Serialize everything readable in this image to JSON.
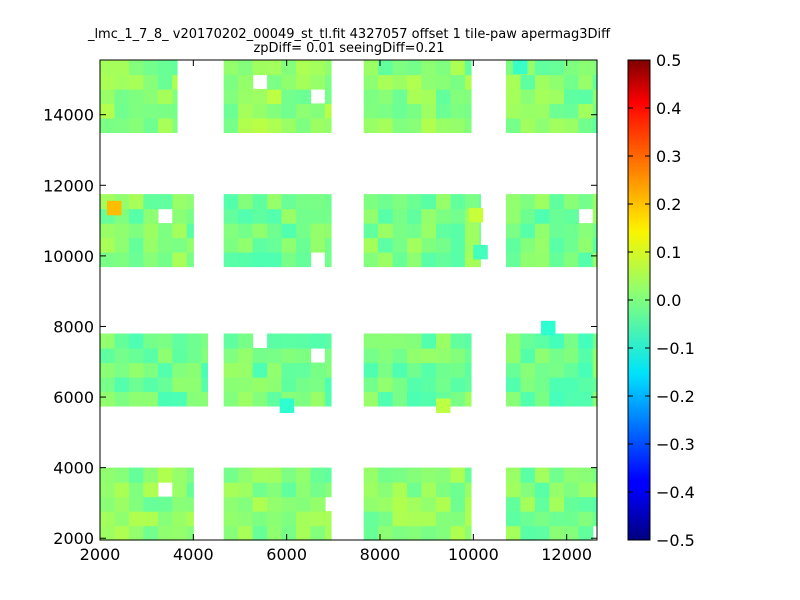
{
  "chart_data": {
    "type": "heatmap",
    "title_line1": "_lmc_1_7_8_ v20170202_00049_st_tl.fit 4327057 offset 1 tile-paw apermag3Diff",
    "title_line2": "zpDiff= 0.01 seeingDiff=0.21",
    "xlabel": "",
    "ylabel": "",
    "xlim": [
      2000,
      12650
    ],
    "ylim": [
      1950,
      15550
    ],
    "x_ticks": [
      2000,
      4000,
      6000,
      8000,
      10000,
      12000
    ],
    "y_ticks": [
      2000,
      4000,
      6000,
      8000,
      10000,
      12000,
      14000
    ],
    "cell_size": [
      310,
      410
    ],
    "colorbar": {
      "colormap": "jet",
      "range": [
        -0.5,
        0.5
      ],
      "ticks": [
        0.5,
        0.4,
        0.3,
        0.2,
        0.1,
        0.0,
        -0.1,
        -0.2,
        -0.3,
        -0.4,
        -0.5
      ],
      "tick_labels": [
        "0.5",
        "0.4",
        "0.3",
        "0.2",
        "0.1",
        "0.0",
        "−0.1",
        "−0.2",
        "−0.3",
        "−0.4",
        "−0.5"
      ]
    },
    "detector_blocks": [
      {
        "x_range": [
          2000,
          3650
        ],
        "y_range": [
          13500,
          15550
        ],
        "mean": 0.01
      },
      {
        "x_range": [
          4650,
          6950
        ],
        "y_range": [
          13500,
          15550
        ],
        "mean": 0.02
      },
      {
        "x_range": [
          7650,
          9950
        ],
        "y_range": [
          13500,
          15550
        ],
        "mean": 0.01
      },
      {
        "x_range": [
          10700,
          12650
        ],
        "y_range": [
          13500,
          15550
        ],
        "mean": 0.0
      },
      {
        "x_range": [
          2000,
          4000
        ],
        "y_range": [
          9700,
          11750
        ],
        "mean": 0.0
      },
      {
        "x_range": [
          4650,
          6950
        ],
        "y_range": [
          9700,
          11750
        ],
        "mean": -0.01
      },
      {
        "x_range": [
          7650,
          10150
        ],
        "y_range": [
          9700,
          11750
        ],
        "mean": 0.0
      },
      {
        "x_range": [
          10700,
          12650
        ],
        "y_range": [
          9700,
          11750
        ],
        "mean": -0.01
      },
      {
        "x_range": [
          2000,
          4300
        ],
        "y_range": [
          5750,
          7800
        ],
        "mean": -0.02
      },
      {
        "x_range": [
          4650,
          6950
        ],
        "y_range": [
          5750,
          7800
        ],
        "mean": -0.01
      },
      {
        "x_range": [
          7650,
          9950
        ],
        "y_range": [
          5750,
          7800
        ],
        "mean": -0.01
      },
      {
        "x_range": [
          10700,
          12650
        ],
        "y_range": [
          5750,
          7800
        ],
        "mean": -0.02
      },
      {
        "x_range": [
          2000,
          4000
        ],
        "y_range": [
          1950,
          4000
        ],
        "mean": 0.01
      },
      {
        "x_range": [
          4650,
          6950
        ],
        "y_range": [
          1950,
          4000
        ],
        "mean": 0.01
      },
      {
        "x_range": [
          7650,
          9950
        ],
        "y_range": [
          1950,
          4000
        ],
        "mean": 0.01
      },
      {
        "x_range": [
          10700,
          12650
        ],
        "y_range": [
          1950,
          4000
        ],
        "mean": 0.0
      }
    ],
    "notable_cells": [
      {
        "x": 2150,
        "y": 11150,
        "value": 0.19
      },
      {
        "x": 9900,
        "y": 10950,
        "value": 0.07
      },
      {
        "x": 9200,
        "y": 5550,
        "value": 0.06
      },
      {
        "x": 5850,
        "y": 5550,
        "value": -0.08
      },
      {
        "x": 10850,
        "y": 15150,
        "value": -0.07
      },
      {
        "x": 11450,
        "y": 7750,
        "value": -0.08
      },
      {
        "x": 10000,
        "y": 9900,
        "value": -0.06
      }
    ],
    "grid": false,
    "legend": "none"
  }
}
